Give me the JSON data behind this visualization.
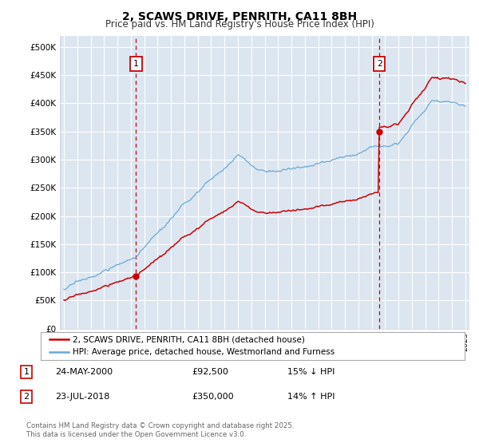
{
  "title": "2, SCAWS DRIVE, PENRITH, CA11 8BH",
  "subtitle": "Price paid vs. HM Land Registry's House Price Index (HPI)",
  "ylim": [
    0,
    520000
  ],
  "yticks": [
    0,
    50000,
    100000,
    150000,
    200000,
    250000,
    300000,
    350000,
    400000,
    450000,
    500000
  ],
  "ytick_labels": [
    "£0",
    "£50K",
    "£100K",
    "£150K",
    "£200K",
    "£250K",
    "£300K",
    "£350K",
    "£400K",
    "£450K",
    "£500K"
  ],
  "x_start_year": 1995,
  "x_end_year": 2025,
  "sale1_date": 2000.39,
  "sale1_price": 92500,
  "sale1_label": "1",
  "sale2_date": 2018.56,
  "sale2_price": 350000,
  "sale2_label": "2",
  "hpi_line_color": "#6aaad4",
  "sale_line_color": "#cc0000",
  "marker_color": "#cc0000",
  "vline_color": "#cc0000",
  "bg_color": "#dce6f1",
  "grid_color": "#ffffff",
  "fig_bg_color": "#ffffff",
  "legend1_text": "2, SCAWS DRIVE, PENRITH, CA11 8BH (detached house)",
  "legend2_text": "HPI: Average price, detached house, Westmorland and Furness",
  "annotation1_num": "1",
  "annotation1_date": "24-MAY-2000",
  "annotation1_price": "£92,500",
  "annotation1_hpi": "15% ↓ HPI",
  "annotation2_num": "2",
  "annotation2_date": "23-JUL-2018",
  "annotation2_price": "£350,000",
  "annotation2_hpi": "14% ↑ HPI",
  "footer": "Contains HM Land Registry data © Crown copyright and database right 2025.\nThis data is licensed under the Open Government Licence v3.0."
}
